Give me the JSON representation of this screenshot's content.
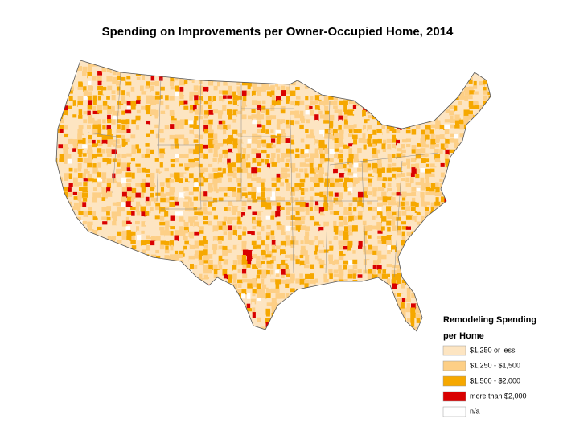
{
  "title": "Spending on Improvements per Owner-Occupied Home, 2014",
  "legend": {
    "title": [
      "Remodeling Spending",
      "per Home"
    ],
    "items": [
      {
        "label": "$1,250 or less",
        "color": "#fde5c2"
      },
      {
        "label": "$1,250 - $1,500",
        "color": "#fdcf86"
      },
      {
        "label": "$1,500 - $2,000",
        "color": "#f6a800"
      },
      {
        "label": "more than $2,000",
        "color": "#d90000"
      },
      {
        "label": "n/a",
        "color": "#ffffff"
      }
    ]
  }
}
